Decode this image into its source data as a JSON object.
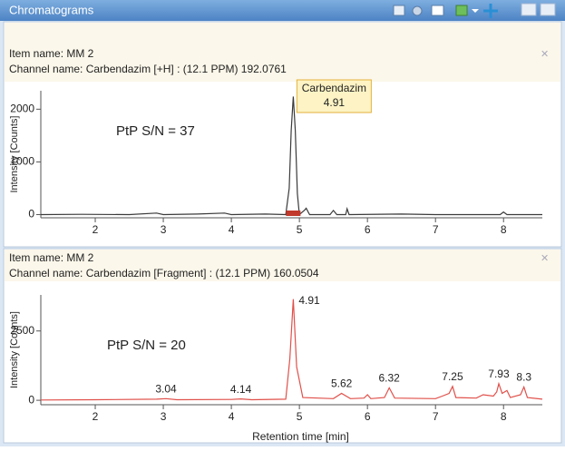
{
  "window": {
    "title": "Chromatograms"
  },
  "chart_data": [
    {
      "type": "line",
      "item_name": "Item name: MM 2",
      "channel_name": "Channel name: Carbendazim [+H] : (12.1 PPM) 192.0761",
      "y_label": "Intensity [Counts]",
      "annotation": "PtP S/N = 37",
      "tooltip": {
        "name": "Carbendazim",
        "value": 4.91
      },
      "color": "#3a3a3a",
      "x": [
        1.2,
        1.8,
        2.5,
        2.9,
        3.0,
        3.5,
        3.9,
        4.0,
        4.5,
        4.8,
        4.85,
        4.88,
        4.91,
        4.94,
        4.97,
        5.0,
        5.08,
        5.1,
        5.15,
        5.45,
        5.5,
        5.55,
        5.68,
        5.7,
        5.73,
        6.5,
        7.0,
        7.95,
        8.0,
        8.05,
        8.57
      ],
      "values": [
        0,
        5,
        0,
        30,
        0,
        10,
        30,
        0,
        10,
        0,
        500,
        1600,
        2240,
        1600,
        400,
        0,
        90,
        120,
        0,
        0,
        80,
        0,
        0,
        110,
        0,
        10,
        0,
        0,
        50,
        0,
        0
      ],
      "xlim": [
        1.2,
        8.57
      ],
      "ylim": [
        -60,
        2350
      ],
      "xticks": [
        2,
        3,
        4,
        5,
        6,
        7,
        8
      ],
      "yticks": [
        0,
        1000,
        2000
      ]
    },
    {
      "type": "line",
      "item_name": "Item name: MM 2",
      "channel_name": "Channel name: Carbendazim [Fragment] : (12.1 PPM) 160.0504",
      "y_label": "Intensity [Counts]",
      "x_label": "Retention time [min]",
      "annotation": "PtP S/N = 20",
      "color": "#e0504a",
      "x": [
        1.2,
        2.0,
        2.9,
        3.04,
        3.2,
        4.0,
        4.14,
        4.3,
        4.8,
        4.86,
        4.91,
        4.96,
        5.05,
        5.5,
        5.62,
        5.75,
        5.95,
        6.0,
        6.05,
        6.25,
        6.32,
        6.4,
        7.0,
        7.1,
        7.2,
        7.25,
        7.3,
        7.6,
        7.7,
        7.85,
        7.9,
        7.93,
        7.98,
        8.05,
        8.1,
        8.25,
        8.3,
        8.35,
        8.57
      ],
      "values": [
        10,
        20,
        40,
        60,
        20,
        30,
        50,
        20,
        40,
        1500,
        3650,
        1200,
        100,
        60,
        250,
        60,
        80,
        200,
        60,
        100,
        450,
        80,
        60,
        150,
        250,
        500,
        100,
        80,
        200,
        150,
        300,
        600,
        250,
        350,
        100,
        200,
        480,
        100,
        40
      ],
      "peaks": {
        "x": [
          3.04,
          4.14,
          4.91,
          5.62,
          6.32,
          7.25,
          7.93,
          8.3
        ],
        "y": [
          60,
          50,
          3650,
          250,
          450,
          500,
          600,
          480
        ]
      },
      "xlim": [
        1.2,
        8.57
      ],
      "ylim": [
        -160,
        3800
      ],
      "xticks": [
        2,
        3,
        4,
        5,
        6,
        7,
        8
      ],
      "yticks": [
        0,
        2500
      ]
    }
  ]
}
